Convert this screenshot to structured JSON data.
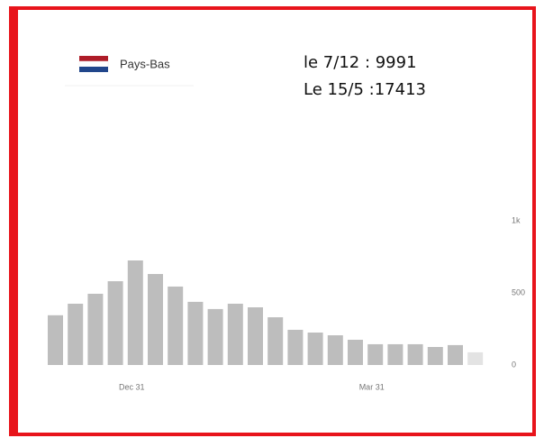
{
  "chart_data": {
    "type": "bar",
    "legend": "Pays-Bas",
    "annotations": [
      "le 7/12 : 9991",
      "Le 15/5 :17413"
    ],
    "categories": [
      null,
      null,
      null,
      null,
      "Dec 31",
      null,
      null,
      null,
      null,
      null,
      null,
      null,
      null,
      null,
      null,
      null,
      "Mar 31",
      null,
      null,
      null,
      null,
      null
    ],
    "values": [
      345,
      425,
      494,
      581,
      725,
      631,
      544,
      438,
      388,
      425,
      400,
      331,
      244,
      225,
      206,
      175,
      144,
      144,
      144,
      125,
      138,
      88
    ],
    "colors": [
      "#bdbdbd",
      "#bdbdbd",
      "#bdbdbd",
      "#bdbdbd",
      "#bdbdbd",
      "#bdbdbd",
      "#bdbdbd",
      "#bdbdbd",
      "#bdbdbd",
      "#bdbdbd",
      "#bdbdbd",
      "#bdbdbd",
      "#bdbdbd",
      "#bdbdbd",
      "#bdbdbd",
      "#bdbdbd",
      "#bdbdbd",
      "#bdbdbd",
      "#bdbdbd",
      "#bdbdbd",
      "#bdbdbd",
      "#e3e3e3"
    ],
    "ylim": [
      0,
      1000
    ],
    "yticks": [
      0,
      500,
      {
        "value": 1000,
        "label": "1k"
      }
    ]
  }
}
